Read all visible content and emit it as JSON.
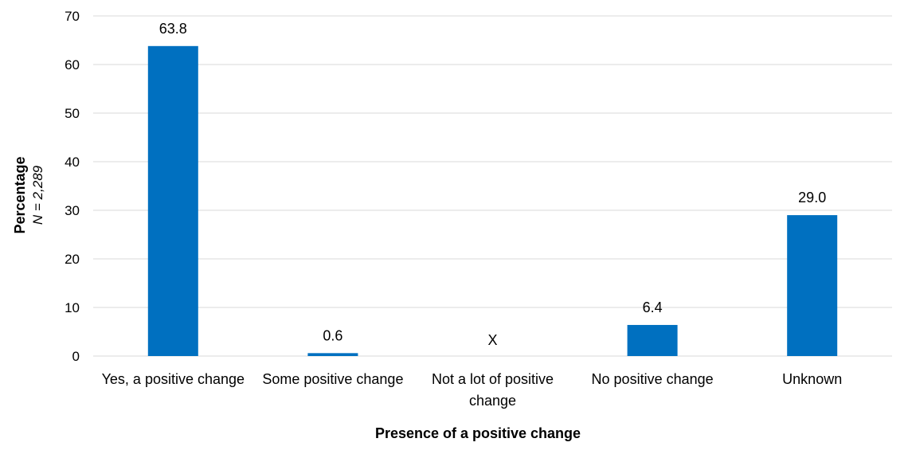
{
  "chart_data": {
    "type": "bar",
    "categories": [
      [
        "Yes, a positive change"
      ],
      [
        "Some positive change"
      ],
      [
        "Not a lot of positive",
        "change"
      ],
      [
        "No positive change"
      ],
      [
        "Unknown"
      ]
    ],
    "values": [
      63.8,
      0.6,
      null,
      6.4,
      29.0
    ],
    "data_labels": [
      "63.8",
      "0.6",
      "X",
      "6.4",
      "29.0"
    ],
    "xlabel": "Presence of a positive change",
    "ylabel": "Percentage",
    "ylabel_sub": "N = 2,289",
    "ylim": [
      0,
      70
    ],
    "yticks": [
      0,
      10,
      20,
      30,
      40,
      50,
      60,
      70
    ],
    "grid": true,
    "legend": "none",
    "bar_color": "#0070C0",
    "grid_color": "#D9D9D9"
  }
}
